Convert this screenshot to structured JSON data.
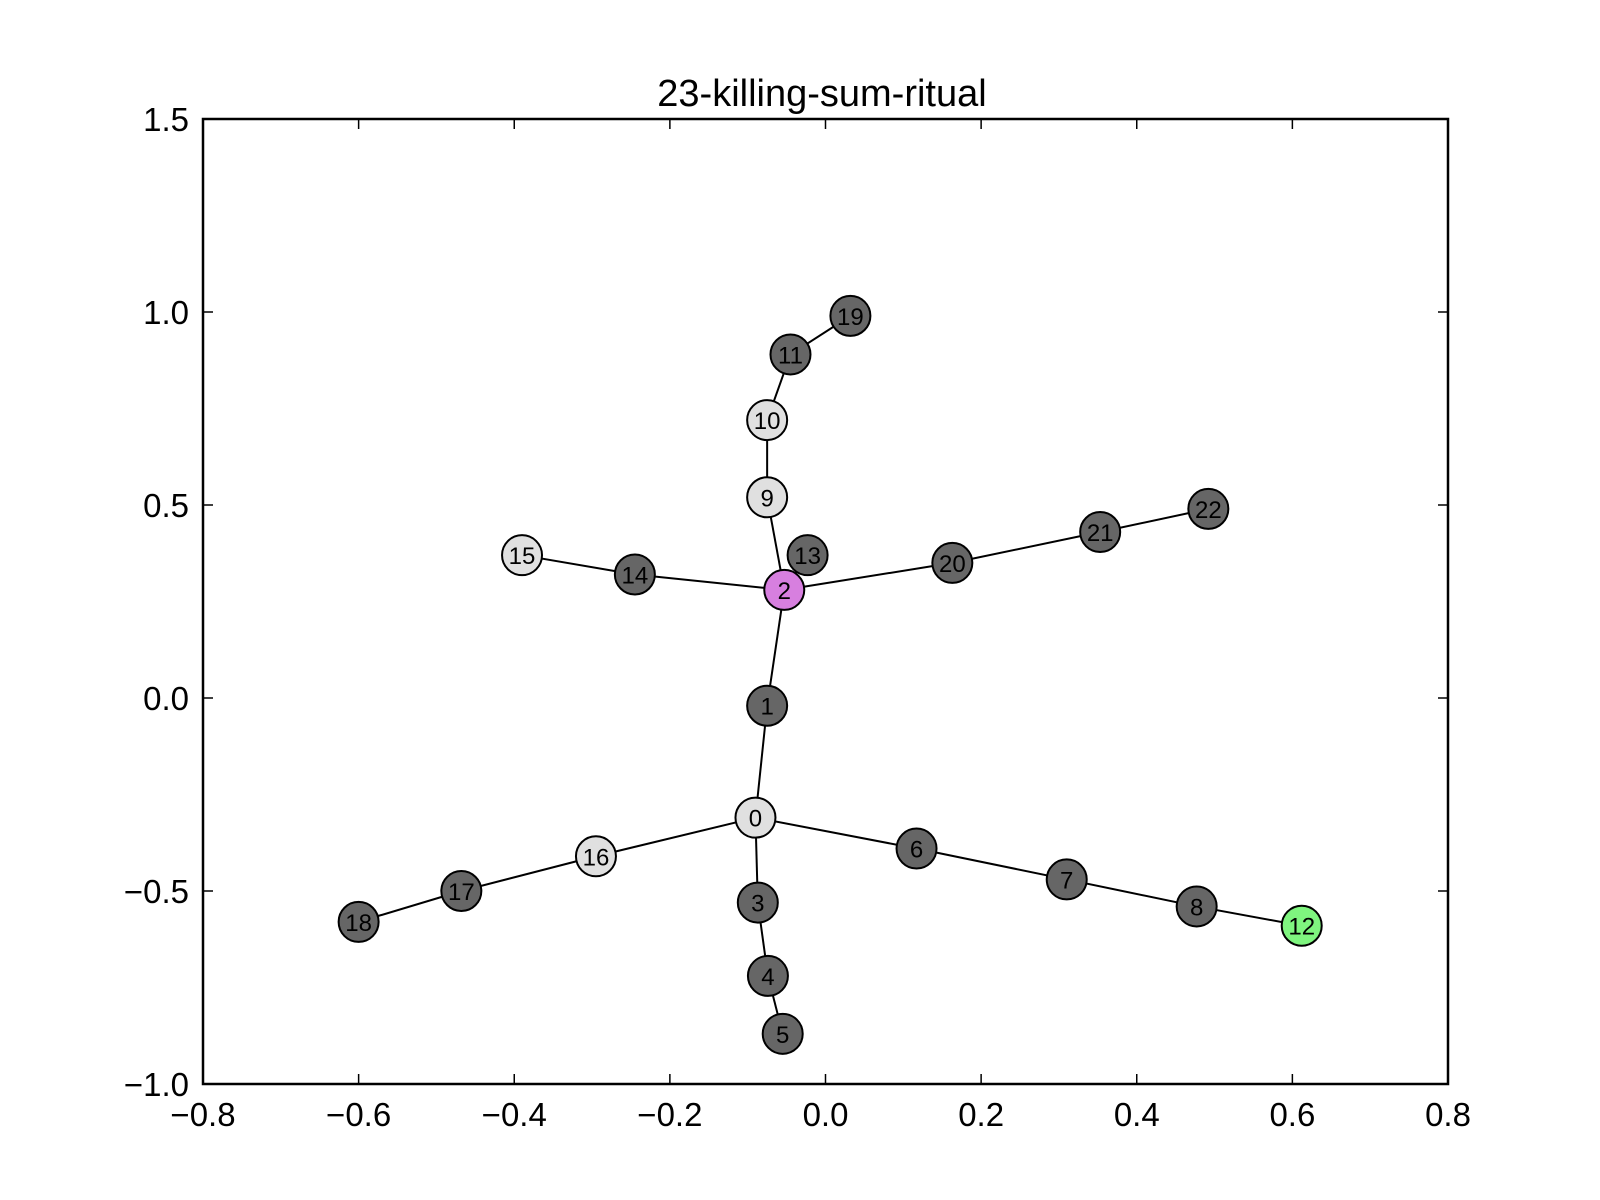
{
  "chart_data": {
    "type": "network",
    "title": "23-killing-sum-ritual",
    "xlabel": "",
    "ylabel": "",
    "xlim": [
      -0.8,
      0.8
    ],
    "ylim": [
      -1.0,
      1.5
    ],
    "x_ticks": [
      -0.8,
      -0.6,
      -0.4,
      -0.2,
      0.0,
      0.2,
      0.4,
      0.6,
      0.8
    ],
    "y_ticks": [
      -1.0,
      -0.5,
      0.0,
      0.5,
      1.0,
      1.5
    ],
    "x_tick_labels": [
      "−0.8",
      "−0.6",
      "−0.4",
      "−0.2",
      "0.0",
      "0.2",
      "0.4",
      "0.6",
      "0.8"
    ],
    "y_tick_labels": [
      "−1.0",
      "−0.5",
      "0.0",
      "0.5",
      "1.0",
      "1.5"
    ],
    "grid": false,
    "colors": {
      "default": "#666666",
      "light": "#e0e0e0",
      "root": "#d77fdf",
      "target": "#7ff57f"
    },
    "nodes": [
      {
        "id": "0",
        "x": -0.09,
        "y": -0.31,
        "color": "light"
      },
      {
        "id": "1",
        "x": -0.075,
        "y": -0.02,
        "color": "default"
      },
      {
        "id": "2",
        "x": -0.053,
        "y": 0.28,
        "color": "root"
      },
      {
        "id": "3",
        "x": -0.087,
        "y": -0.53,
        "color": "default"
      },
      {
        "id": "4",
        "x": -0.074,
        "y": -0.72,
        "color": "default"
      },
      {
        "id": "5",
        "x": -0.055,
        "y": -0.87,
        "color": "default"
      },
      {
        "id": "6",
        "x": 0.117,
        "y": -0.39,
        "color": "default"
      },
      {
        "id": "7",
        "x": 0.31,
        "y": -0.47,
        "color": "default"
      },
      {
        "id": "8",
        "x": 0.477,
        "y": -0.54,
        "color": "default"
      },
      {
        "id": "9",
        "x": -0.075,
        "y": 0.52,
        "color": "light"
      },
      {
        "id": "10",
        "x": -0.075,
        "y": 0.72,
        "color": "light"
      },
      {
        "id": "11",
        "x": -0.045,
        "y": 0.89,
        "color": "default"
      },
      {
        "id": "12",
        "x": 0.612,
        "y": -0.59,
        "color": "target"
      },
      {
        "id": "13",
        "x": -0.023,
        "y": 0.37,
        "color": "default"
      },
      {
        "id": "14",
        "x": -0.245,
        "y": 0.32,
        "color": "default"
      },
      {
        "id": "15",
        "x": -0.39,
        "y": 0.37,
        "color": "light"
      },
      {
        "id": "16",
        "x": -0.295,
        "y": -0.41,
        "color": "light"
      },
      {
        "id": "17",
        "x": -0.468,
        "y": -0.5,
        "color": "default"
      },
      {
        "id": "18",
        "x": -0.6,
        "y": -0.58,
        "color": "default"
      },
      {
        "id": "19",
        "x": 0.032,
        "y": 0.99,
        "color": "default"
      },
      {
        "id": "20",
        "x": 0.163,
        "y": 0.35,
        "color": "default"
      },
      {
        "id": "21",
        "x": 0.353,
        "y": 0.43,
        "color": "default"
      },
      {
        "id": "22",
        "x": 0.492,
        "y": 0.49,
        "color": "default"
      }
    ],
    "edges": [
      [
        "0",
        "1"
      ],
      [
        "1",
        "2"
      ],
      [
        "0",
        "3"
      ],
      [
        "3",
        "4"
      ],
      [
        "4",
        "5"
      ],
      [
        "0",
        "6"
      ],
      [
        "6",
        "7"
      ],
      [
        "7",
        "8"
      ],
      [
        "8",
        "12"
      ],
      [
        "2",
        "9"
      ],
      [
        "9",
        "10"
      ],
      [
        "10",
        "11"
      ],
      [
        "11",
        "19"
      ],
      [
        "2",
        "13"
      ],
      [
        "2",
        "14"
      ],
      [
        "14",
        "15"
      ],
      [
        "0",
        "16"
      ],
      [
        "16",
        "17"
      ],
      [
        "17",
        "18"
      ],
      [
        "2",
        "20"
      ],
      [
        "20",
        "21"
      ],
      [
        "21",
        "22"
      ]
    ]
  }
}
